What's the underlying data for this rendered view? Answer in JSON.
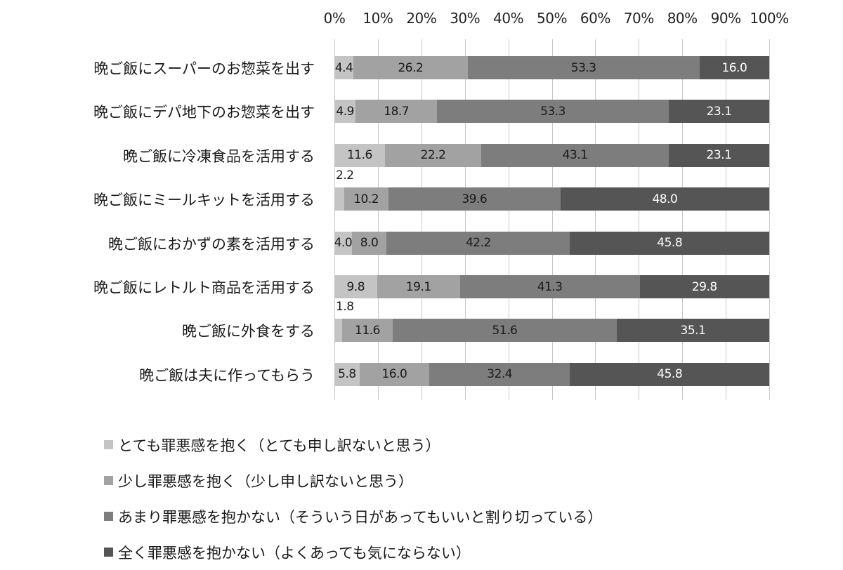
{
  "chart_data": {
    "type": "bar",
    "orientation": "horizontal",
    "stacked": "percent",
    "title": "",
    "xlabel": "",
    "ylabel": "",
    "xlim": [
      0,
      100
    ],
    "x_ticks": [
      "0%",
      "10%",
      "20%",
      "30%",
      "40%",
      "50%",
      "60%",
      "70%",
      "80%",
      "90%",
      "100%"
    ],
    "x_axis_position": "top",
    "grid": true,
    "legend_position": "bottom",
    "categories": [
      "晩ご飯にスーパーのお惣菜を出す",
      "晩ご飯にデパ地下のお惣菜を出す",
      "晩ご飯に冷凍食品を活用する",
      "晩ご飯にミールキットを活用する",
      "晩ご飯におかずの素を活用する",
      "晩ご飯にレトルト商品を活用する",
      "晩ご飯に外食をする",
      "晩ご飯は夫に作ってもらう"
    ],
    "series": [
      {
        "name": "とても罪悪感を抱く（とても申し訳ないと思う）",
        "color": "#c4c4c4",
        "values": [
          4.4,
          4.9,
          11.6,
          2.2,
          4.0,
          9.8,
          1.8,
          5.8
        ]
      },
      {
        "name": "少し罪悪感を抱く（少し申し訳ないと思う）",
        "color": "#a2a2a2",
        "values": [
          26.2,
          18.7,
          22.2,
          10.2,
          8.0,
          19.1,
          11.6,
          16.0
        ]
      },
      {
        "name": "あまり罪悪感を抱かない（そういう日があってもいいと割り切っている）",
        "color": "#7d7d7d",
        "values": [
          53.3,
          53.3,
          43.1,
          39.6,
          42.2,
          41.3,
          51.6,
          32.4
        ]
      },
      {
        "name": "全く罪悪感を抱かない（よくあっても気にならない）",
        "color": "#555555",
        "values": [
          16.0,
          23.1,
          23.1,
          48.0,
          45.8,
          29.8,
          35.1,
          45.8
        ]
      }
    ],
    "value_labels": [
      [
        "4.4",
        "26.2",
        "53.3",
        "16.0"
      ],
      [
        "4.9",
        "18.7",
        "53.3",
        "23.1"
      ],
      [
        "11.6",
        "22.2",
        "43.1",
        "23.1"
      ],
      [
        "2.2",
        "10.2",
        "39.6",
        "48.0"
      ],
      [
        "4.0",
        "8.0",
        "42.2",
        "45.8"
      ],
      [
        "9.8",
        "19.1",
        "41.3",
        "29.8"
      ],
      [
        "1.8",
        "11.6",
        "51.6",
        "35.1"
      ],
      [
        "5.8",
        "16.0",
        "32.4",
        "45.8"
      ]
    ]
  },
  "axis": {
    "ticks": [
      "0%",
      "10%",
      "20%",
      "30%",
      "40%",
      "50%",
      "60%",
      "70%",
      "80%",
      "90%",
      "100%"
    ]
  },
  "legend": {
    "items": [
      {
        "label": "とても罪悪感を抱く（とても申し訳ないと思う）",
        "color": "#c4c4c4"
      },
      {
        "label": "少し罪悪感を抱く（少し申し訳ないと思う）",
        "color": "#a2a2a2"
      },
      {
        "label": "あまり罪悪感を抱かない（そういう日があってもいいと割り切っている）",
        "color": "#7d7d7d"
      },
      {
        "label": "全く罪悪感を抱かない（よくあっても気にならない）",
        "color": "#555555"
      }
    ]
  }
}
